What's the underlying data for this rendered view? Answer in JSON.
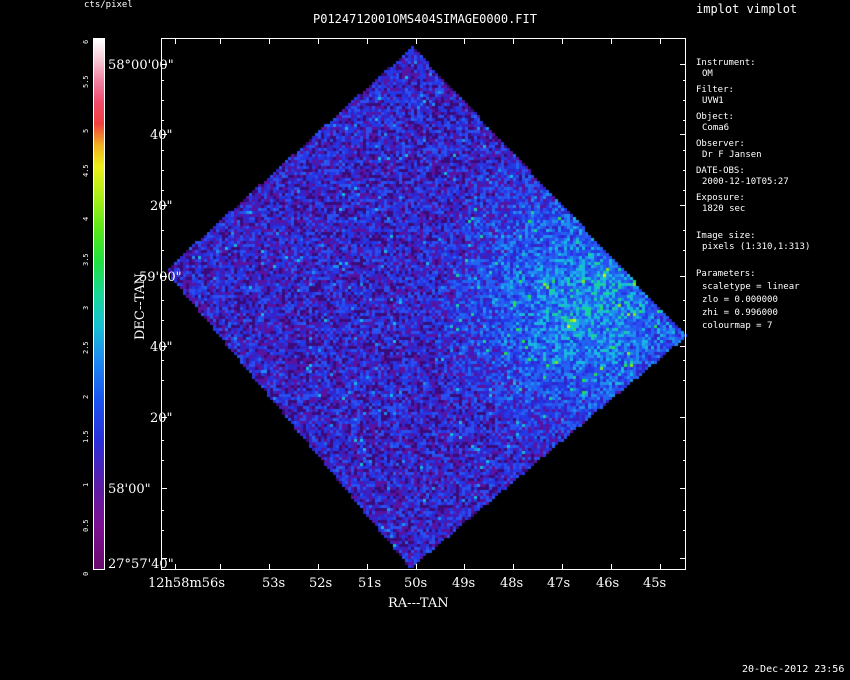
{
  "app_title": "implot vimplot",
  "image_title": "P0124712001OMS404SIMAGE0000.FIT",
  "colorbar": {
    "label": "cts/pixel",
    "ticks": [
      "0",
      "0.5",
      "1",
      "1.5",
      "2",
      "2.5",
      "3",
      "3.5",
      "4",
      "4.5",
      "5",
      "5.5",
      "6"
    ]
  },
  "axes": {
    "xlabel": "RA---TAN",
    "ylabel": "DEC--TAN",
    "x_ticks": [
      "12h58m56s",
      "53s",
      "52s",
      "51s",
      "50s",
      "49s",
      "48s",
      "47s",
      "46s",
      "45s"
    ],
    "y_ticks": [
      "58°00'00\"",
      "40\"",
      "20\"",
      "59'00\"",
      "40\"",
      "20\"",
      "58'00\"",
      "27°57'40\""
    ]
  },
  "info": {
    "instrument_label": "Instrument:",
    "instrument": "OM",
    "filter_label": "Filter:",
    "filter": "UVW1",
    "object_label": "Object:",
    "object": "Coma6",
    "observer_label": "Observer:",
    "observer": "Dr F Jansen",
    "date_obs_label": "DATE-OBS:",
    "date_obs": "2000-12-10T05:27",
    "exposure_label": "Exposure:",
    "exposure": "1820 sec",
    "image_size_label": "Image size:",
    "image_size": "pixels (1:310,1:313)",
    "parameters_label": "Parameters:",
    "scaletype": "scaletype = linear",
    "zlo": "zlo = 0.000000",
    "zhi": "zhi = 0.996000",
    "colourmap": "colourmap = 7"
  },
  "footer_date": "20-Dec-2012 23:56"
}
